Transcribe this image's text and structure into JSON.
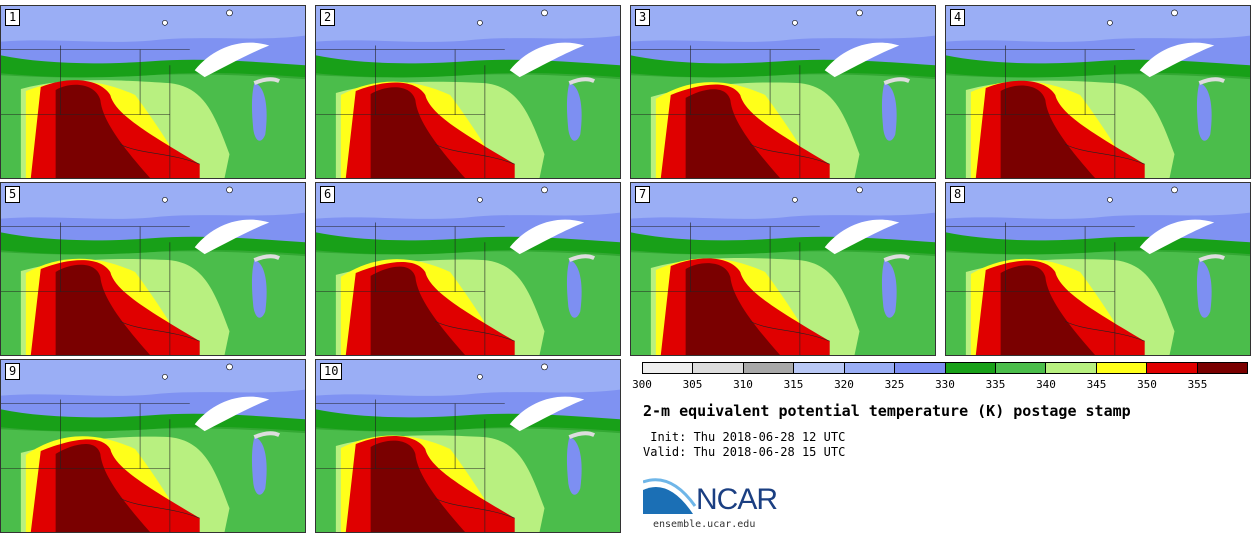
{
  "stamps": [
    {
      "label": "1"
    },
    {
      "label": "2"
    },
    {
      "label": "3"
    },
    {
      "label": "4"
    },
    {
      "label": "5"
    },
    {
      "label": "6"
    },
    {
      "label": "7"
    },
    {
      "label": "8"
    },
    {
      "label": "9"
    },
    {
      "label": "10"
    }
  ],
  "colorbar": {
    "ticks": [
      "300",
      "305",
      "310",
      "315",
      "320",
      "325",
      "330",
      "335",
      "340",
      "345",
      "350",
      "355"
    ],
    "colors": [
      "#eeeeee",
      "#dcdcdc",
      "#a8a8a8",
      "#b9c8f5",
      "#9aaef5",
      "#7d8ff2",
      "#18a018",
      "#4bbd4b",
      "#b8f080",
      "#ffff1a",
      "#e00000",
      "#7a0000"
    ]
  },
  "title": "2-m equivalent potential temperature (K) postage stamp",
  "init": " Init: Thu 2018-06-28 12 UTC",
  "valid": "Valid: Thu 2018-06-28 15 UTC",
  "logo": {
    "text": "NCAR",
    "site": "ensemble.ucar.edu"
  }
}
